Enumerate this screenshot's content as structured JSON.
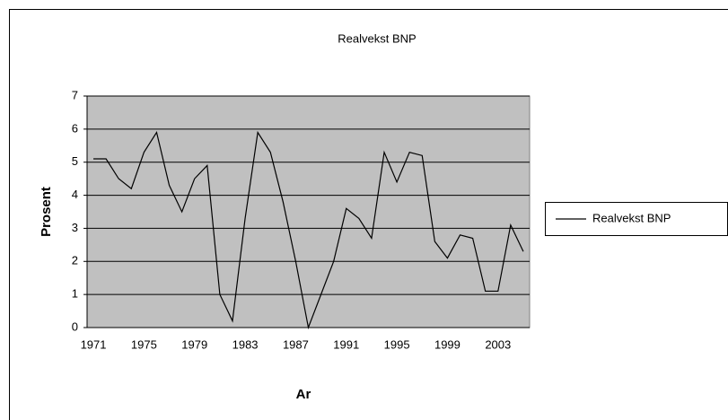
{
  "chart_data": {
    "type": "line",
    "title": "Realvekst BNP",
    "x_label": "Ar",
    "y_label": "Prosent",
    "categories": [
      "1971",
      null,
      null,
      null,
      "1975",
      null,
      null,
      null,
      "1979",
      null,
      null,
      null,
      "1983",
      null,
      null,
      null,
      "1987",
      null,
      null,
      null,
      "1991",
      null,
      null,
      null,
      "1995",
      null,
      null,
      null,
      "1999",
      null,
      null,
      null,
      "2003",
      null,
      null
    ],
    "series": [
      {
        "name": "Realvekst BNP",
        "color": "#000000",
        "values": [
          5.1,
          5.1,
          4.5,
          4.2,
          5.3,
          5.9,
          4.3,
          3.5,
          4.5,
          4.9,
          1.0,
          0.2,
          3.3,
          5.9,
          5.3,
          3.8,
          2.0,
          0.0,
          1.0,
          2.0,
          3.6,
          3.3,
          2.7,
          5.3,
          4.4,
          5.3,
          5.2,
          2.6,
          2.1,
          2.8,
          2.7,
          1.1,
          1.1,
          3.1,
          2.3
        ]
      }
    ],
    "ylim": [
      0,
      7
    ],
    "yticks": [
      0,
      1,
      2,
      3,
      4,
      5,
      6,
      7
    ],
    "grid": true,
    "plot_background": "#c0c0c0",
    "legend": "right"
  }
}
